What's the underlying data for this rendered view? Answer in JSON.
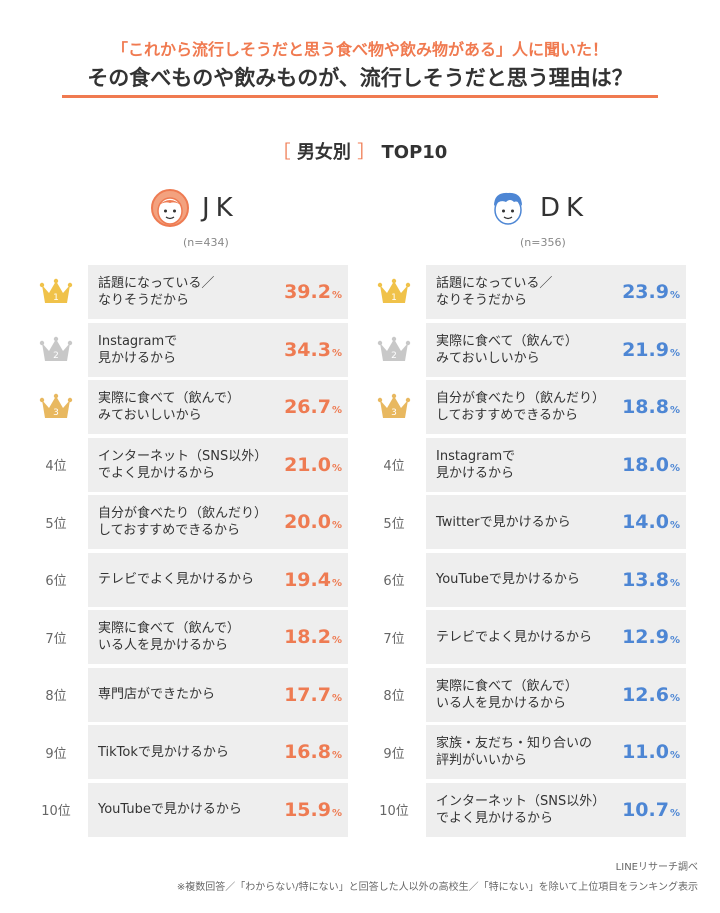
{
  "header": {
    "subtitle": "「これから流行しそうだと思う食べ物や飲み物がある」人に聞いた！",
    "title": "その食べものや飲みものが、流行しそうだと思う理由は？"
  },
  "section": {
    "bracket_open": "［",
    "label": "男女別",
    "bracket_close": "］",
    "suffix": "TOP10"
  },
  "colors": {
    "jk": "#ee7b52",
    "dk": "#4d86d4",
    "row_bg": "#eeeeee",
    "gold": "#f0c24a",
    "silver": "#c8c8c8",
    "bronze": "#e8b860"
  },
  "chart_data": [
    {
      "type": "table",
      "title": "JK",
      "n": "(n=434)",
      "unit": "%",
      "ranks": [
        "1",
        "2",
        "3",
        "4位",
        "5位",
        "6位",
        "7位",
        "8位",
        "9位",
        "10位"
      ],
      "categories": [
        "話題になっている／\nなりそうだから",
        "Instagramで\n見かけるから",
        "実際に食べて（飲んで）\nみておいしいから",
        "インターネット（SNS以外）\nでよく見かけるから",
        "自分が食べたり（飲んだり）\nしておすすめできるから",
        "テレビでよく見かけるから",
        "実際に食べて（飲んで）\nいる人を見かけるから",
        "専門店ができたから",
        "TikTokで見かけるから",
        "YouTubeで見かけるから"
      ],
      "values": [
        "39.2",
        "34.3",
        "26.7",
        "21.0",
        "20.0",
        "19.4",
        "18.2",
        "17.7",
        "16.8",
        "15.9"
      ]
    },
    {
      "type": "table",
      "title": "DK",
      "n": "(n=356)",
      "unit": "%",
      "ranks": [
        "1",
        "2",
        "3",
        "4位",
        "5位",
        "6位",
        "7位",
        "8位",
        "9位",
        "10位"
      ],
      "categories": [
        "話題になっている／\nなりそうだから",
        "実際に食べて（飲んで）\nみておいしいから",
        "自分が食べたり（飲んだり）\nしておすすめできるから",
        "Instagramで\n見かけるから",
        "Twitterで見かけるから",
        "YouTubeで見かけるから",
        "テレビでよく見かけるから",
        "実際に食べて（飲んで）\nいる人を見かけるから",
        "家族・友だち・知り合いの\n評判がいいから",
        "インターネット（SNS以外）\nでよく見かけるから"
      ],
      "values": [
        "23.9",
        "21.9",
        "18.8",
        "18.0",
        "14.0",
        "13.8",
        "12.9",
        "12.6",
        "11.0",
        "10.7"
      ]
    }
  ],
  "footer": {
    "source": "LINEリサーチ調べ",
    "note": "※複数回答／「わからない/特にない」と回答した人以外の高校生／「特にない」を除いて上位項目をランキング表示"
  }
}
